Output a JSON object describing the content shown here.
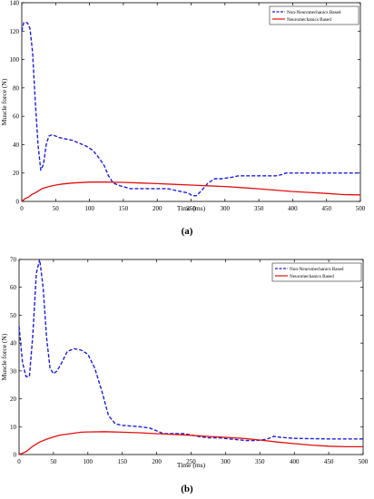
{
  "figure": {
    "caption_a": "(a)",
    "caption_b": "(b)"
  },
  "colors": {
    "non_neuro": "#1f1fd0",
    "neuro": "#e01010",
    "axis": "#000000"
  },
  "chart_data": [
    {
      "type": "line",
      "panel": "a",
      "xlabel": "Time (ms)",
      "ylabel": "Muscle force (N)",
      "xlim": [
        0,
        500
      ],
      "ylim": [
        0,
        140
      ],
      "xticks": [
        0,
        50,
        100,
        150,
        200,
        250,
        300,
        350,
        400,
        450,
        500
      ],
      "yticks": [
        0,
        20,
        40,
        60,
        80,
        100,
        120,
        140
      ],
      "legend_position": "top-right",
      "series": [
        {
          "name": "Non-Neuromechanics Based",
          "style": "dashed",
          "x": [
            0,
            3,
            8,
            12,
            16,
            20,
            24,
            28,
            32,
            36,
            40,
            45,
            50,
            55,
            65,
            75,
            85,
            95,
            105,
            115,
            122,
            128,
            135,
            145,
            160,
            175,
            190,
            205,
            215,
            225,
            235,
            245,
            252,
            258,
            262,
            268,
            275,
            285,
            295,
            310,
            320,
            330,
            345,
            360,
            375,
            385,
            390,
            400,
            450,
            500
          ],
          "y": [
            120,
            126,
            126,
            122,
            105,
            70,
            40,
            22,
            26,
            40,
            46,
            47,
            46,
            45,
            44,
            43,
            41,
            39,
            36,
            30,
            25,
            18,
            13,
            11,
            9,
            9,
            9,
            9,
            9,
            8,
            7,
            6,
            4,
            4,
            6,
            9,
            13,
            16,
            16,
            17,
            18,
            18,
            18,
            18,
            18,
            19,
            20,
            20,
            20,
            20
          ]
        },
        {
          "name": "Neuromechanics Based",
          "style": "solid",
          "x": [
            0,
            5,
            10,
            15,
            20,
            30,
            40,
            50,
            60,
            75,
            100,
            125,
            150,
            175,
            200,
            225,
            250,
            275,
            300,
            325,
            350,
            375,
            400,
            425,
            450,
            475,
            500
          ],
          "y": [
            0,
            2,
            3,
            5,
            6,
            9,
            10.5,
            11.5,
            12.3,
            13,
            13.6,
            13.6,
            13.4,
            13,
            12.5,
            12,
            11.5,
            11,
            10.5,
            9.7,
            8.9,
            7.9,
            7,
            6.3,
            5.6,
            4.8,
            4.6
          ]
        }
      ]
    },
    {
      "type": "line",
      "panel": "b",
      "xlabel": "Time (ms)",
      "ylabel": "Muscle force (N)",
      "xlim": [
        0,
        500
      ],
      "ylim": [
        0,
        70
      ],
      "xticks": [
        0,
        50,
        100,
        150,
        200,
        250,
        300,
        350,
        400,
        450,
        500
      ],
      "yticks": [
        0,
        10,
        20,
        30,
        40,
        50,
        60,
        70
      ],
      "legend_position": "top-right",
      "series": [
        {
          "name": "Non-Neuromechanics Based",
          "style": "dashed",
          "x": [
            0,
            5,
            10,
            15,
            20,
            25,
            30,
            35,
            40,
            45,
            50,
            55,
            60,
            70,
            80,
            90,
            100,
            110,
            120,
            130,
            140,
            150,
            160,
            175,
            190,
            200,
            210,
            225,
            240,
            250,
            260,
            275,
            290,
            310,
            330,
            345,
            360,
            370,
            380,
            400,
            450,
            500
          ],
          "y": [
            46,
            33,
            28,
            28,
            43,
            65,
            70,
            60,
            42,
            31,
            29,
            30,
            32,
            37,
            38,
            37.5,
            36,
            31,
            23,
            14,
            11,
            10.5,
            10.3,
            10,
            9.5,
            8.5,
            7.5,
            7.5,
            7.5,
            7,
            6.5,
            6,
            6,
            5.5,
            5,
            5,
            5.5,
            6.5,
            6.2,
            5.8,
            5.6,
            5.6
          ]
        },
        {
          "name": "Neuromechanics Based",
          "style": "solid",
          "x": [
            0,
            5,
            10,
            15,
            20,
            30,
            40,
            50,
            60,
            75,
            90,
            100,
            125,
            150,
            175,
            200,
            225,
            250,
            275,
            300,
            325,
            350,
            375,
            400,
            425,
            450,
            475,
            500
          ],
          "y": [
            0,
            0.5,
            1,
            2,
            3,
            4.5,
            5.5,
            6.3,
            7,
            7.5,
            8,
            8.1,
            8.2,
            8,
            7.8,
            7.5,
            7.2,
            6.9,
            6.5,
            6.2,
            5.8,
            5.2,
            4.5,
            3.9,
            3.4,
            3,
            2.8,
            2.8
          ]
        }
      ]
    }
  ]
}
